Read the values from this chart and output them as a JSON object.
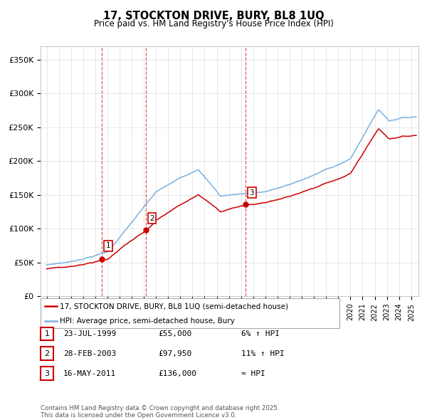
{
  "title": "17, STOCKTON DRIVE, BURY, BL8 1UQ",
  "subtitle": "Price paid vs. HM Land Registry's House Price Index (HPI)",
  "ylim": [
    0,
    370000
  ],
  "yticks": [
    0,
    50000,
    100000,
    150000,
    200000,
    250000,
    300000,
    350000
  ],
  "ytick_labels": [
    "£0",
    "£50K",
    "£100K",
    "£150K",
    "£200K",
    "£250K",
    "£300K",
    "£350K"
  ],
  "sale_prices": [
    55000,
    97950,
    136000
  ],
  "sale_labels": [
    "1",
    "2",
    "3"
  ],
  "sale_year_floats": [
    1999.558,
    2003.163,
    2011.372
  ],
  "legend_line1": "17, STOCKTON DRIVE, BURY, BL8 1UQ (semi-detached house)",
  "legend_line2": "HPI: Average price, semi-detached house, Bury",
  "table_entries": [
    {
      "num": "1",
      "date": "23-JUL-1999",
      "price": "£55,000",
      "change": "6% ↑ HPI"
    },
    {
      "num": "2",
      "date": "28-FEB-2003",
      "price": "£97,950",
      "change": "11% ↑ HPI"
    },
    {
      "num": "3",
      "date": "16-MAY-2011",
      "price": "£136,000",
      "change": "≈ HPI"
    }
  ],
  "footer": "Contains HM Land Registry data © Crown copyright and database right 2025.\nThis data is licensed under the Open Government Licence v3.0.",
  "hpi_color": "#7ab0e0",
  "price_color": "#cc0000",
  "vline_color": "#cc0000",
  "grid_color": "#dddddd",
  "background_color": "#ffffff"
}
